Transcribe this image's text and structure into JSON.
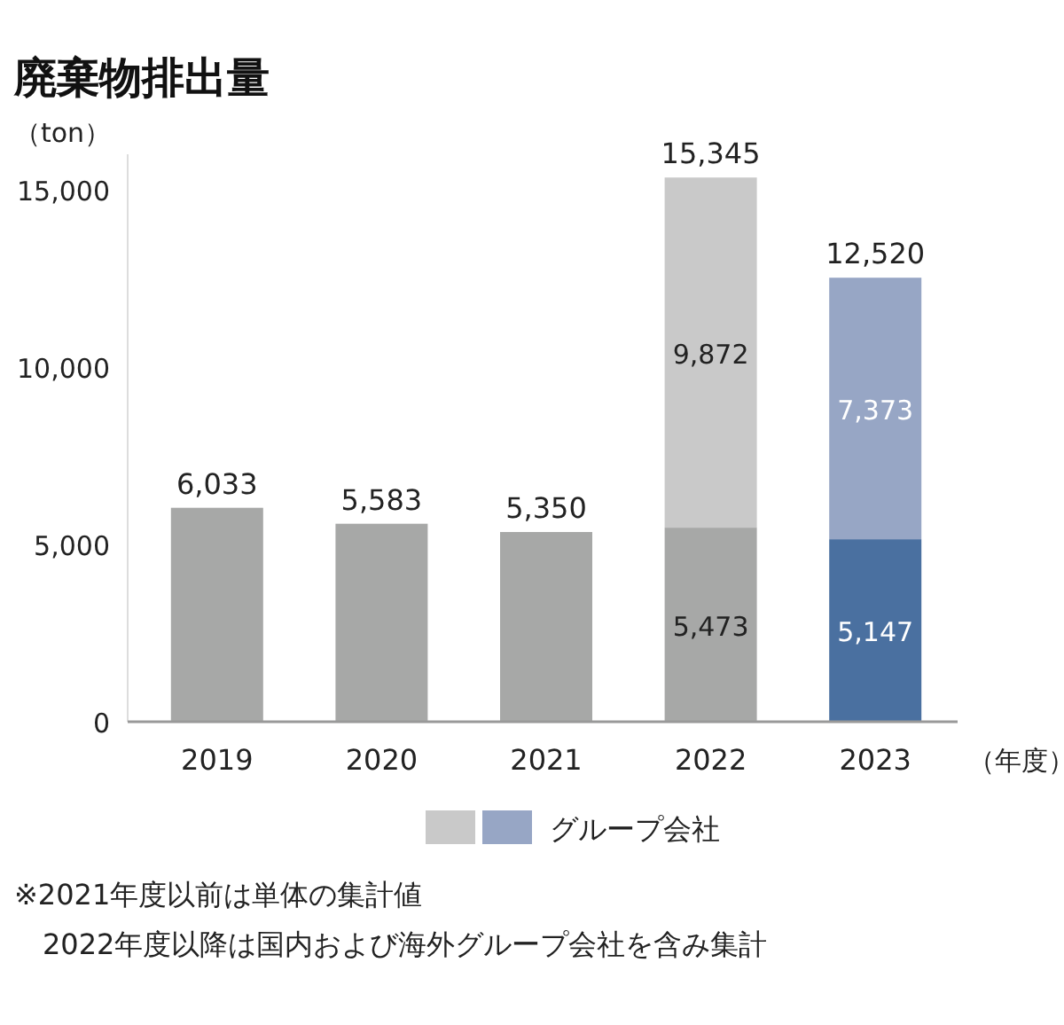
{
  "chart_data": {
    "type": "bar",
    "title": "廃棄物排出量",
    "ylabel": "（ton）",
    "xlabel": "（年度）",
    "categories": [
      "2019",
      "2020",
      "2021",
      "2022",
      "2023"
    ],
    "stacked": true,
    "series": [
      {
        "colors": [
          "#a7a8a7",
          "#a7a8a7",
          "#a7a8a7",
          "#a7a8a7",
          "#4a70a0"
        ],
        "values": [
          6033,
          5583,
          5350,
          5473,
          5147
        ],
        "value_labels": [
          "6,033",
          "5,583",
          "5,350",
          "5,473",
          "5,147"
        ]
      },
      {
        "name": "グループ会社",
        "colors": [
          "#c9c9c9",
          "#c9c9c9",
          "#c9c9c9",
          "#c9c9c9",
          "#97a6c5"
        ],
        "values": [
          null,
          null,
          null,
          9872,
          7373
        ],
        "value_labels": [
          null,
          null,
          null,
          "9,872",
          "7,373"
        ]
      }
    ],
    "totals": [
      null,
      null,
      null,
      "15,345",
      "12,520"
    ],
    "ylim": [
      0,
      16000
    ],
    "yticks": [
      0,
      {
        "value": 5000,
        "label": "5,000"
      },
      {
        "value": 10000,
        "label": "10,000"
      },
      {
        "value": 15000,
        "label": "15,000"
      }
    ],
    "grid": false,
    "legend": "bottom",
    "annotations": [
      "※2021年度以前は単体の集計値",
      "2022年度以降は国内および海外グループ会社を含み集計"
    ]
  }
}
